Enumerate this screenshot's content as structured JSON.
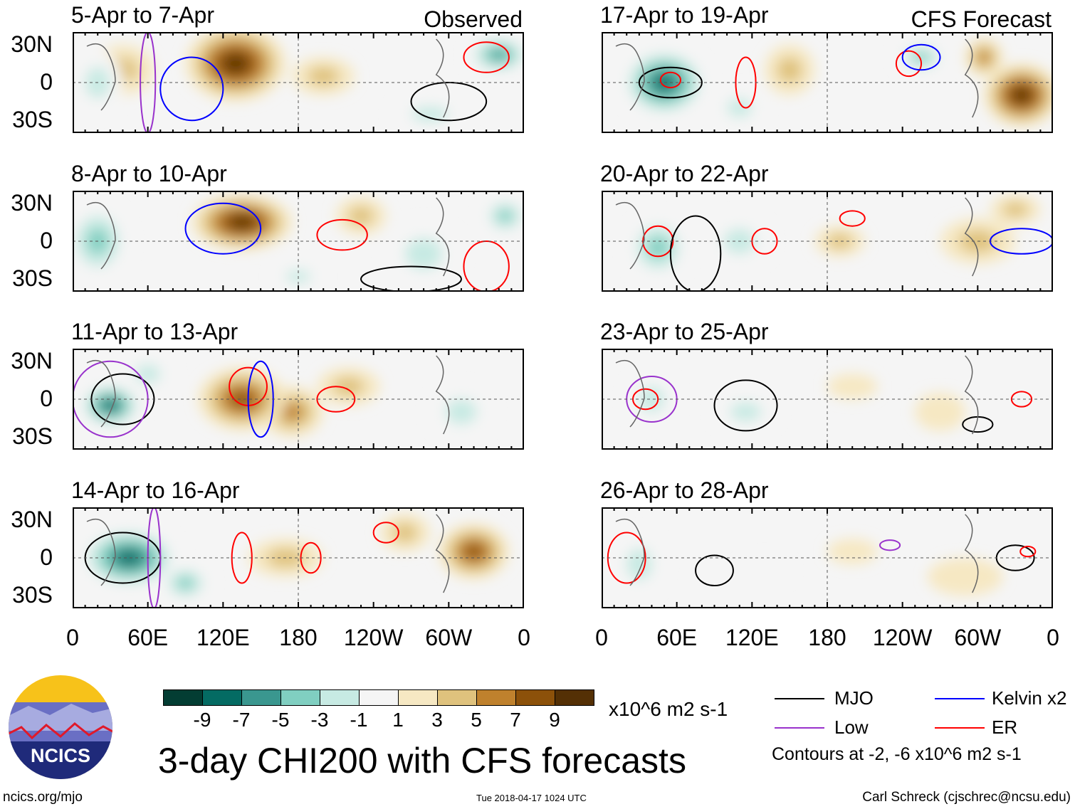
{
  "labels": {
    "observed": "Observed",
    "forecast": "CFS Forecast",
    "title": "3-day CHI200 with CFS forecasts",
    "units": "x10^6 m2 s-1",
    "contours": "Contours at -2, -6 x10^6 m2 s-1",
    "url": "ncics.org/mjo",
    "timestamp": "Tue 2018-04-17 1024 UTC",
    "author": "Carl Schreck (cjschrec@ncsu.edu)",
    "logo": "NCICS"
  },
  "lat_labels": [
    "30N",
    "0",
    "30S"
  ],
  "lon_labels": [
    "0",
    "60E",
    "120E",
    "180",
    "120W",
    "60W",
    "0"
  ],
  "colorbar": {
    "colors": [
      "#033d33",
      "#046b63",
      "#3a978f",
      "#80cfc1",
      "#c7eae3",
      "#f5f5f5",
      "#f6e8c3",
      "#dfc27d",
      "#bf812d",
      "#8c510a",
      "#543005"
    ],
    "ticks": [
      "-9",
      "-7",
      "-5",
      "-3",
      "-1",
      "1",
      "3",
      "5",
      "7",
      "9"
    ]
  },
  "legend": [
    {
      "name": "MJO",
      "color": "#000000"
    },
    {
      "name": "Kelvin x2",
      "color": "#0000ff"
    },
    {
      "name": "Low",
      "color": "#9932cc"
    },
    {
      "name": "ER",
      "color": "#ff0000"
    }
  ],
  "panels": [
    {
      "title": "5-Apr to 7-Apr",
      "column": "observed",
      "blobs": [
        [
          130,
          15,
          40,
          30,
          9
        ],
        [
          40,
          10,
          25,
          20,
          3
        ],
        [
          340,
          22,
          25,
          15,
          -7
        ],
        [
          20,
          0,
          20,
          25,
          -3
        ],
        [
          285,
          -25,
          30,
          12,
          -3
        ],
        [
          200,
          5,
          25,
          15,
          3
        ]
      ]
    },
    {
      "title": "8-Apr to 10-Apr",
      "column": "observed",
      "blobs": [
        [
          135,
          15,
          40,
          22,
          9
        ],
        [
          20,
          0,
          25,
          30,
          -5
        ],
        [
          345,
          20,
          18,
          15,
          -5
        ],
        [
          280,
          -10,
          30,
          25,
          -3
        ],
        [
          180,
          -28,
          20,
          10,
          -3
        ],
        [
          230,
          20,
          20,
          15,
          3
        ]
      ]
    },
    {
      "title": "11-Apr to 13-Apr",
      "column": "observed",
      "blobs": [
        [
          30,
          -5,
          25,
          18,
          -9
        ],
        [
          60,
          20,
          20,
          15,
          -3
        ],
        [
          135,
          0,
          35,
          25,
          7
        ],
        [
          175,
          -10,
          25,
          20,
          5
        ],
        [
          220,
          10,
          25,
          15,
          3
        ],
        [
          310,
          -10,
          25,
          20,
          -3
        ]
      ]
    },
    {
      "title": "14-Apr to 16-Apr",
      "column": "observed",
      "blobs": [
        [
          45,
          0,
          40,
          25,
          -9
        ],
        [
          90,
          -20,
          20,
          15,
          -5
        ],
        [
          320,
          5,
          28,
          22,
          7
        ],
        [
          170,
          0,
          30,
          15,
          3
        ],
        [
          265,
          20,
          20,
          15,
          3
        ]
      ]
    },
    {
      "title": "17-Apr to 19-Apr",
      "column": "forecast",
      "blobs": [
        [
          50,
          0,
          35,
          28,
          -9
        ],
        [
          335,
          -10,
          30,
          25,
          9
        ],
        [
          255,
          20,
          20,
          12,
          -5
        ],
        [
          150,
          10,
          20,
          20,
          3
        ],
        [
          305,
          20,
          15,
          15,
          5
        ],
        [
          110,
          -20,
          20,
          15,
          -3
        ]
      ]
    },
    {
      "title": "20-Apr to 22-Apr",
      "column": "forecast",
      "blobs": [
        [
          45,
          -5,
          25,
          25,
          -5
        ],
        [
          110,
          0,
          25,
          20,
          -3
        ],
        [
          300,
          0,
          30,
          18,
          3
        ],
        [
          190,
          0,
          20,
          12,
          3
        ],
        [
          330,
          25,
          20,
          12,
          3
        ]
      ]
    },
    {
      "title": "23-Apr to 25-Apr",
      "column": "forecast",
      "blobs": [
        [
          40,
          0,
          20,
          20,
          -3
        ],
        [
          115,
          -10,
          25,
          15,
          -3
        ],
        [
          270,
          -10,
          20,
          15,
          1
        ],
        [
          200,
          10,
          20,
          10,
          1
        ]
      ]
    },
    {
      "title": "26-Apr to 28-Apr",
      "column": "forecast",
      "blobs": [
        [
          30,
          -5,
          20,
          25,
          -3
        ],
        [
          130,
          -10,
          20,
          10,
          -1
        ],
        [
          290,
          -15,
          30,
          15,
          1
        ],
        [
          200,
          5,
          20,
          10,
          1
        ]
      ]
    }
  ],
  "contour_lines": [
    [
      [
        0,
        [
          95,
          -5,
          25,
          25
        ],
        "#0000ff"
      ],
      [
        0,
        [
          330,
          20,
          18,
          12
        ],
        "#ff0000"
      ],
      [
        0,
        [
          300,
          -15,
          30,
          15
        ],
        "#000000"
      ],
      [
        0,
        [
          60,
          0,
          6,
          40
        ],
        "#9932cc"
      ]
    ],
    [
      [
        1,
        [
          120,
          10,
          30,
          20
        ],
        "#0000ff"
      ],
      [
        1,
        [
          215,
          5,
          20,
          12
        ],
        "#ff0000"
      ],
      [
        1,
        [
          330,
          -20,
          18,
          20
        ],
        "#ff0000"
      ],
      [
        1,
        [
          270,
          -30,
          40,
          10
        ],
        "#000000"
      ]
    ],
    [
      [
        2,
        [
          40,
          0,
          25,
          20
        ],
        "#000000"
      ],
      [
        2,
        [
          140,
          10,
          15,
          15
        ],
        "#ff0000"
      ],
      [
        2,
        [
          210,
          0,
          15,
          10
        ],
        "#ff0000"
      ],
      [
        2,
        [
          150,
          0,
          10,
          30
        ],
        "#0000ff"
      ],
      [
        2,
        [
          30,
          0,
          30,
          30
        ],
        "#9932cc"
      ]
    ],
    [
      [
        3,
        [
          40,
          0,
          30,
          20
        ],
        "#000000"
      ],
      [
        3,
        [
          135,
          0,
          8,
          20
        ],
        "#ff0000"
      ],
      [
        3,
        [
          190,
          0,
          8,
          12
        ],
        "#ff0000"
      ],
      [
        3,
        [
          250,
          20,
          10,
          8
        ],
        "#ff0000"
      ],
      [
        3,
        [
          65,
          0,
          5,
          40
        ],
        "#9932cc"
      ]
    ],
    [
      [
        4,
        [
          55,
          0,
          25,
          12
        ],
        "#000000"
      ],
      [
        4,
        [
          55,
          2,
          8,
          6
        ],
        "#ff0000"
      ],
      [
        4,
        [
          115,
          0,
          8,
          20
        ],
        "#ff0000"
      ],
      [
        4,
        [
          245,
          15,
          10,
          10
        ],
        "#ff0000"
      ],
      [
        4,
        [
          255,
          20,
          15,
          10
        ],
        "#0000ff"
      ]
    ],
    [
      [
        5,
        [
          45,
          0,
          12,
          12
        ],
        "#ff0000"
      ],
      [
        5,
        [
          75,
          -10,
          20,
          30
        ],
        "#000000"
      ],
      [
        5,
        [
          130,
          0,
          10,
          10
        ],
        "#ff0000"
      ],
      [
        5,
        [
          200,
          18,
          10,
          6
        ],
        "#ff0000"
      ],
      [
        5,
        [
          335,
          0,
          25,
          10
        ],
        "#0000ff"
      ]
    ],
    [
      [
        6,
        [
          40,
          0,
          20,
          18
        ],
        "#9932cc"
      ],
      [
        6,
        [
          115,
          -5,
          25,
          20
        ],
        "#000000"
      ],
      [
        6,
        [
          35,
          0,
          10,
          8
        ],
        "#ff0000"
      ],
      [
        6,
        [
          300,
          -20,
          12,
          6
        ],
        "#000000"
      ],
      [
        6,
        [
          335,
          0,
          8,
          6
        ],
        "#ff0000"
      ]
    ],
    [
      [
        7,
        [
          90,
          -10,
          15,
          12
        ],
        "#000000"
      ],
      [
        7,
        [
          330,
          0,
          15,
          10
        ],
        "#000000"
      ],
      [
        7,
        [
          20,
          0,
          15,
          20
        ],
        "#ff0000"
      ],
      [
        7,
        [
          230,
          10,
          8,
          4
        ],
        "#9932cc"
      ],
      [
        7,
        [
          340,
          5,
          6,
          4
        ],
        "#ff0000"
      ]
    ]
  ]
}
